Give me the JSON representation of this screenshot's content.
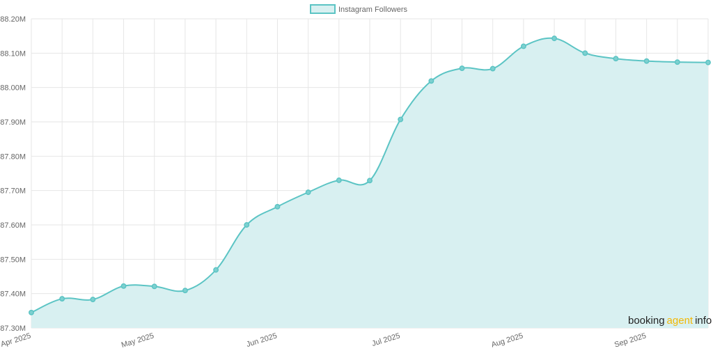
{
  "chart_data": {
    "type": "area",
    "legend": {
      "label": "Instagram Followers",
      "placement": "top-center"
    },
    "x_ticks": [
      "Apr 2025",
      "May 2025",
      "Jun 2025",
      "Jul 2025",
      "Aug 2025",
      "Sep 2025"
    ],
    "y_ticks": [
      "88.20M",
      "88.10M",
      "88.00M",
      "87.90M",
      "87.80M",
      "87.70M",
      "87.60M",
      "87.50M",
      "87.40M",
      "87.30M"
    ],
    "ylim": [
      87.3,
      88.2
    ],
    "y_unit": "M",
    "grid": true,
    "series": [
      {
        "name": "Instagram Followers",
        "color": "#5bc4c4",
        "fill": "#d8f0f1",
        "values": [
          87.345,
          87.385,
          87.383,
          87.422,
          87.421,
          87.409,
          87.469,
          87.6,
          87.653,
          87.695,
          87.73,
          87.729,
          87.907,
          88.019,
          88.056,
          88.055,
          88.12,
          88.143,
          88.1,
          88.084,
          88.077,
          88.074,
          88.073
        ]
      }
    ]
  },
  "watermark": {
    "part1": "booking",
    "part2": "agent",
    "part3": "info",
    "color_main": "#222222",
    "color_accent": "#f2b705"
  }
}
